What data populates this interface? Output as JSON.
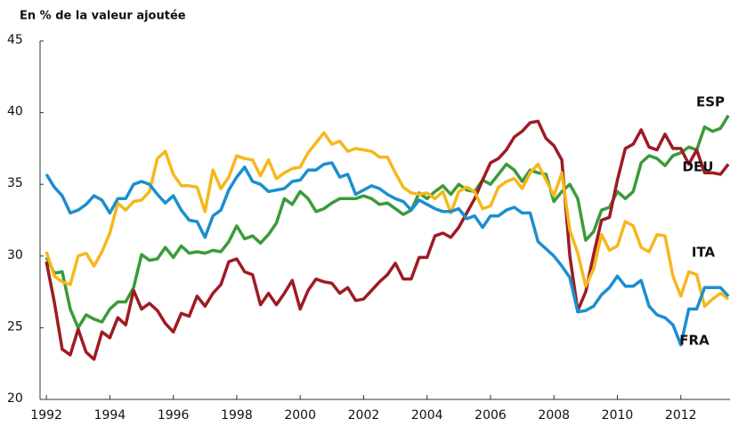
{
  "chart_data": {
    "type": "line",
    "title": "En % de la valeur ajoutée",
    "x": [
      1992,
      1992.25,
      1992.5,
      1992.75,
      1993,
      1993.25,
      1993.5,
      1993.75,
      1994,
      1994.25,
      1994.5,
      1994.75,
      1995,
      1995.25,
      1995.5,
      1995.75,
      1996,
      1996.25,
      1996.5,
      1996.75,
      1997,
      1997.25,
      1997.5,
      1997.75,
      1998,
      1998.25,
      1998.5,
      1998.75,
      1999,
      1999.25,
      1999.5,
      1999.75,
      2000,
      2000.25,
      2000.5,
      2000.75,
      2001,
      2001.25,
      2001.5,
      2001.75,
      2002,
      2002.25,
      2002.5,
      2002.75,
      2003,
      2003.25,
      2003.5,
      2003.75,
      2004,
      2004.25,
      2004.5,
      2004.75,
      2005,
      2005.25,
      2005.5,
      2005.75,
      2006,
      2006.25,
      2006.5,
      2006.75,
      2007,
      2007.25,
      2007.5,
      2007.75,
      2008,
      2008.25,
      2008.5,
      2008.75,
      2009,
      2009.25,
      2009.5,
      2009.75,
      2010,
      2010.25,
      2010.5,
      2010.75,
      2011,
      2011.25,
      2011.5,
      2011.75,
      2012,
      2012.25,
      2012.5,
      2012.75,
      2013,
      2013.25,
      2013.5
    ],
    "series": [
      {
        "name": "ESP",
        "color": "#3a9b3a",
        "values": [
          29.9,
          28.8,
          28.9,
          26.3,
          25.0,
          25.9,
          25.6,
          25.4,
          26.3,
          26.8,
          26.8,
          27.8,
          30.1,
          29.7,
          29.8,
          30.6,
          29.9,
          30.7,
          30.2,
          30.3,
          30.2,
          30.4,
          30.3,
          31.0,
          32.1,
          31.2,
          31.4,
          30.9,
          31.5,
          32.3,
          34.0,
          33.6,
          34.5,
          34.0,
          33.1,
          33.3,
          33.7,
          34.0,
          34.0,
          34.0,
          34.2,
          34.0,
          33.6,
          33.7,
          33.3,
          32.9,
          33.2,
          34.4,
          34.0,
          34.5,
          34.9,
          34.3,
          35.0,
          34.6,
          34.5,
          35.3,
          35.0,
          35.7,
          36.4,
          36.0,
          35.2,
          36.0,
          35.8,
          35.7,
          33.8,
          34.5,
          35.0,
          34.0,
          31.1,
          31.7,
          33.2,
          33.4,
          34.5,
          34.0,
          34.5,
          36.5,
          37.0,
          36.8,
          36.3,
          37.0,
          37.2,
          37.6,
          37.4,
          39.0,
          38.7,
          38.9,
          39.8
        ]
      },
      {
        "name": "DEU",
        "color": "#9e1b23",
        "values": [
          29.6,
          26.8,
          23.5,
          23.1,
          24.9,
          23.3,
          22.8,
          24.7,
          24.3,
          25.7,
          25.2,
          27.6,
          26.3,
          26.7,
          26.2,
          25.3,
          24.7,
          26.0,
          25.8,
          27.2,
          26.5,
          27.4,
          28.0,
          29.6,
          29.8,
          28.9,
          28.7,
          26.6,
          27.4,
          26.6,
          27.4,
          28.3,
          26.3,
          27.6,
          28.4,
          28.2,
          28.1,
          27.4,
          27.8,
          26.9,
          27.0,
          27.6,
          28.2,
          28.7,
          29.5,
          28.4,
          28.4,
          29.9,
          29.9,
          31.4,
          31.6,
          31.3,
          32.0,
          33.0,
          34.0,
          35.3,
          36.5,
          36.8,
          37.4,
          38.3,
          38.7,
          39.3,
          39.4,
          38.2,
          37.7,
          36.7,
          30.0,
          26.2,
          27.5,
          30.1,
          32.5,
          32.7,
          35.3,
          37.5,
          37.8,
          38.8,
          37.6,
          37.4,
          38.5,
          37.5,
          37.5,
          36.4,
          37.4,
          35.8,
          35.8,
          35.7,
          36.4
        ]
      },
      {
        "name": "ITA",
        "color": "#f5b81c",
        "values": [
          30.3,
          28.6,
          28.2,
          28.0,
          30.0,
          30.2,
          29.3,
          30.3,
          31.6,
          33.7,
          33.2,
          33.8,
          33.9,
          34.5,
          36.8,
          37.3,
          35.7,
          34.9,
          34.9,
          34.8,
          33.1,
          36.0,
          34.7,
          35.5,
          37.0,
          36.8,
          36.7,
          35.6,
          36.7,
          35.4,
          35.8,
          36.1,
          36.2,
          37.2,
          37.9,
          38.6,
          37.8,
          38.0,
          37.3,
          37.5,
          37.4,
          37.3,
          36.9,
          36.9,
          35.8,
          34.8,
          34.4,
          34.3,
          34.4,
          34.0,
          34.5,
          33.0,
          34.5,
          34.8,
          34.5,
          33.3,
          33.5,
          34.8,
          35.2,
          35.4,
          34.7,
          35.8,
          36.4,
          35.3,
          34.2,
          35.8,
          31.8,
          30.2,
          27.9,
          29.1,
          31.5,
          30.4,
          30.7,
          32.4,
          32.1,
          30.6,
          30.3,
          31.5,
          31.4,
          28.6,
          27.2,
          28.9,
          28.7,
          26.5,
          27.0,
          27.4,
          27.0
        ]
      },
      {
        "name": "FRA",
        "color": "#1b8fcf",
        "values": [
          35.7,
          34.8,
          34.2,
          33.0,
          33.2,
          33.6,
          34.2,
          33.9,
          33.0,
          34.0,
          34.0,
          35.0,
          35.2,
          35.0,
          34.3,
          33.7,
          34.2,
          33.2,
          32.5,
          32.4,
          31.3,
          32.8,
          33.2,
          34.6,
          35.5,
          36.2,
          35.2,
          35.0,
          34.5,
          34.6,
          34.7,
          35.2,
          35.3,
          36.0,
          36.0,
          36.4,
          36.5,
          35.5,
          35.7,
          34.3,
          34.6,
          34.9,
          34.7,
          34.3,
          34.0,
          33.8,
          33.2,
          33.9,
          33.6,
          33.3,
          33.1,
          33.1,
          33.3,
          32.6,
          32.8,
          32.0,
          32.8,
          32.8,
          33.2,
          33.4,
          33.0,
          33.0,
          31.0,
          30.5,
          30.0,
          29.3,
          28.5,
          26.1,
          26.2,
          26.5,
          27.3,
          27.8,
          28.6,
          27.9,
          27.9,
          28.3,
          26.5,
          25.9,
          25.7,
          25.2,
          23.8,
          26.3,
          26.3,
          27.8,
          27.8,
          27.8,
          27.2
        ]
      }
    ],
    "xlim": [
      1991.8,
      2013.55
    ],
    "xticks": [
      1992,
      1994,
      1996,
      1998,
      2000,
      2002,
      2004,
      2006,
      2008,
      2010,
      2012
    ],
    "ylim": [
      20,
      45
    ],
    "yticks": [
      20,
      25,
      30,
      35,
      40,
      45
    ],
    "grid": false
  }
}
